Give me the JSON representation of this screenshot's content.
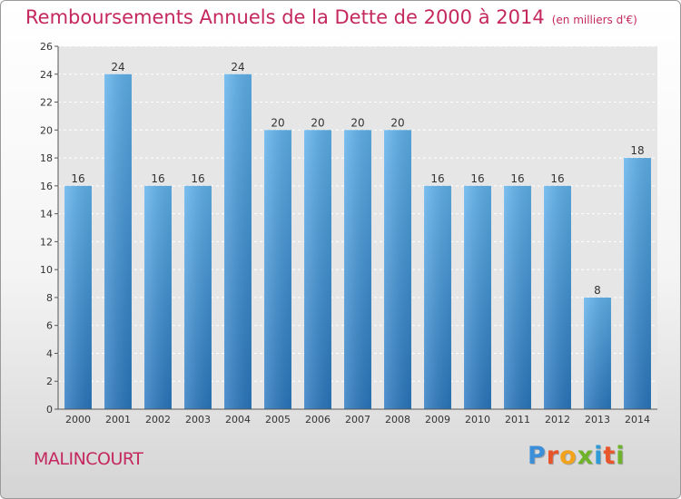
{
  "title": "Remboursements Annuels de la Dette de 2000 à 2014",
  "subtitle": "(en milliers d'€)",
  "city": "MALINCOURT",
  "logo": {
    "letters": [
      "P",
      "r",
      "o",
      "x",
      "i",
      "t",
      "i"
    ],
    "colors": [
      "#3a8fd8",
      "#e8552a",
      "#f2a21b",
      "#6fb32b",
      "#2e9ad6",
      "#e8552a",
      "#6fb32b"
    ]
  },
  "chart_data": {
    "type": "bar",
    "title": "Remboursements Annuels de la Dette de 2000 à 2014",
    "ylabel": "",
    "xlabel": "",
    "ylim": [
      0,
      26
    ],
    "yticks": [
      0,
      2,
      4,
      6,
      8,
      10,
      12,
      14,
      16,
      18,
      20,
      22,
      24,
      26
    ],
    "categories": [
      "2000",
      "2001",
      "2002",
      "2003",
      "2004",
      "2005",
      "2006",
      "2007",
      "2008",
      "2009",
      "2010",
      "2011",
      "2012",
      "2013",
      "2014"
    ],
    "values": [
      16,
      24,
      16,
      16,
      24,
      20,
      20,
      20,
      20,
      16,
      16,
      16,
      16,
      8,
      18
    ],
    "bar_color": "#4a9be0",
    "grid": true
  }
}
